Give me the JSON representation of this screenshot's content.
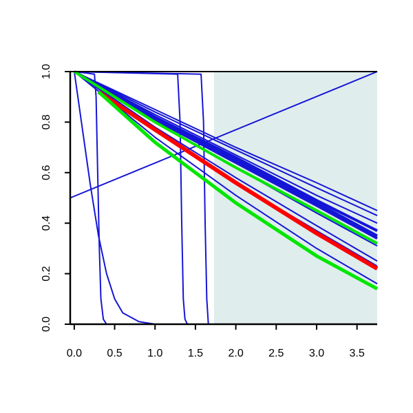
{
  "chart_data": {
    "type": "line",
    "title": "",
    "xlabel": "",
    "ylabel": "",
    "xlim": [
      -0.05,
      3.75
    ],
    "ylim": [
      0.0,
      1.0
    ],
    "x_ticks": [
      0.0,
      0.5,
      1.0,
      1.5,
      2.0,
      2.5,
      3.0,
      3.5
    ],
    "x_tick_labels": [
      "0.0",
      "0.5",
      "1.0",
      "1.5",
      "2.0",
      "2.5",
      "3.0",
      "3.5"
    ],
    "y_ticks": [
      0.0,
      0.2,
      0.4,
      0.6,
      0.8,
      1.0
    ],
    "y_tick_labels": [
      "0.0",
      "0.2",
      "0.4",
      "0.6",
      "0.8",
      "1.0"
    ],
    "shaded_region": {
      "x_start": 1.73,
      "x_end": 3.75,
      "color": "#e0eded"
    },
    "grid": false,
    "legend": "none",
    "series_colors": {
      "blue": "#1515d6",
      "red": "#ff0000",
      "green": "#00e600"
    },
    "series": [
      {
        "color": "blue",
        "width": 2,
        "x": [
          0.0,
          0.2,
          0.3,
          0.4,
          0.5,
          0.6,
          0.8,
          1.0
        ],
        "y": [
          1.0,
          0.55,
          0.35,
          0.2,
          0.1,
          0.045,
          0.01,
          0.0
        ]
      },
      {
        "color": "blue",
        "width": 2,
        "x": [
          0.0,
          0.25,
          0.27,
          0.29,
          0.31,
          0.33,
          0.36,
          0.4
        ],
        "y": [
          1.0,
          0.99,
          0.9,
          0.6,
          0.3,
          0.1,
          0.02,
          0.0
        ]
      },
      {
        "color": "blue",
        "width": 2,
        "x": [
          0.0,
          1.28,
          1.31,
          1.33,
          1.35,
          1.37,
          1.4
        ],
        "y": [
          1.0,
          0.99,
          0.8,
          0.4,
          0.1,
          0.02,
          0.0
        ]
      },
      {
        "color": "blue",
        "width": 2,
        "x": [
          0.0,
          1.57,
          1.6,
          1.62,
          1.64,
          1.66
        ],
        "y": [
          1.0,
          0.99,
          0.8,
          0.4,
          0.1,
          0.0
        ]
      },
      {
        "color": "blue",
        "width": 2,
        "x": [
          -0.05,
          3.75
        ],
        "y": [
          0.5,
          1.0
        ]
      },
      {
        "color": "blue",
        "width": 2,
        "x": [
          -0.05,
          3.75
        ],
        "y": [
          0.0,
          0.0
        ]
      },
      {
        "color": "blue",
        "width": 2,
        "x": [
          0.0,
          1.0,
          2.0,
          3.0,
          3.75
        ],
        "y": [
          1.0,
          0.85,
          0.7,
          0.56,
          0.45
        ]
      },
      {
        "color": "blue",
        "width": 2,
        "x": [
          0.0,
          1.0,
          2.0,
          3.0,
          3.75
        ],
        "y": [
          1.0,
          0.84,
          0.69,
          0.54,
          0.43
        ]
      },
      {
        "color": "blue",
        "width": 2,
        "x": [
          0.0,
          1.0,
          2.0,
          3.0,
          3.75
        ],
        "y": [
          1.0,
          0.83,
          0.67,
          0.51,
          0.4
        ]
      },
      {
        "color": "blue",
        "width": 4,
        "x": [
          0.0,
          1.0,
          2.0,
          3.0,
          3.75
        ],
        "y": [
          1.0,
          0.82,
          0.66,
          0.49,
          0.37
        ]
      },
      {
        "color": "blue",
        "width": 4,
        "x": [
          0.0,
          1.0,
          2.0,
          3.0,
          3.75
        ],
        "y": [
          1.0,
          0.82,
          0.65,
          0.48,
          0.35
        ]
      },
      {
        "color": "blue",
        "width": 4,
        "x": [
          0.0,
          1.0,
          2.0,
          3.0,
          3.75
        ],
        "y": [
          1.0,
          0.81,
          0.64,
          0.47,
          0.34
        ]
      },
      {
        "color": "blue",
        "width": 2,
        "x": [
          0.0,
          1.0,
          2.0,
          3.0,
          3.75
        ],
        "y": [
          1.0,
          0.8,
          0.62,
          0.44,
          0.31
        ]
      },
      {
        "color": "blue",
        "width": 2,
        "x": [
          0.0,
          1.0,
          2.0,
          3.0,
          3.75
        ],
        "y": [
          1.0,
          0.78,
          0.58,
          0.39,
          0.25
        ]
      },
      {
        "color": "blue",
        "width": 2,
        "x": [
          0.0,
          1.0,
          2.0,
          3.0,
          3.75
        ],
        "y": [
          1.0,
          0.77,
          0.56,
          0.37,
          0.23
        ]
      },
      {
        "color": "blue",
        "width": 2,
        "x": [
          0.0,
          1.0,
          2.0,
          3.0,
          3.75
        ],
        "y": [
          1.0,
          0.74,
          0.51,
          0.3,
          0.16
        ]
      },
      {
        "color": "red",
        "width": 6,
        "x": [
          0.3,
          1.0,
          2.0,
          3.0,
          3.75
        ],
        "y": [
          0.92,
          0.77,
          0.56,
          0.36,
          0.22
        ]
      },
      {
        "color": "green",
        "width": 4,
        "x": [
          0.0,
          1.0,
          2.0,
          3.0,
          3.75
        ],
        "y": [
          1.0,
          0.8,
          0.62,
          0.45,
          0.32
        ]
      },
      {
        "color": "green",
        "width": 5,
        "x": [
          0.3,
          1.0,
          2.0,
          3.0,
          3.75
        ],
        "y": [
          0.92,
          0.72,
          0.48,
          0.27,
          0.14
        ]
      }
    ]
  }
}
